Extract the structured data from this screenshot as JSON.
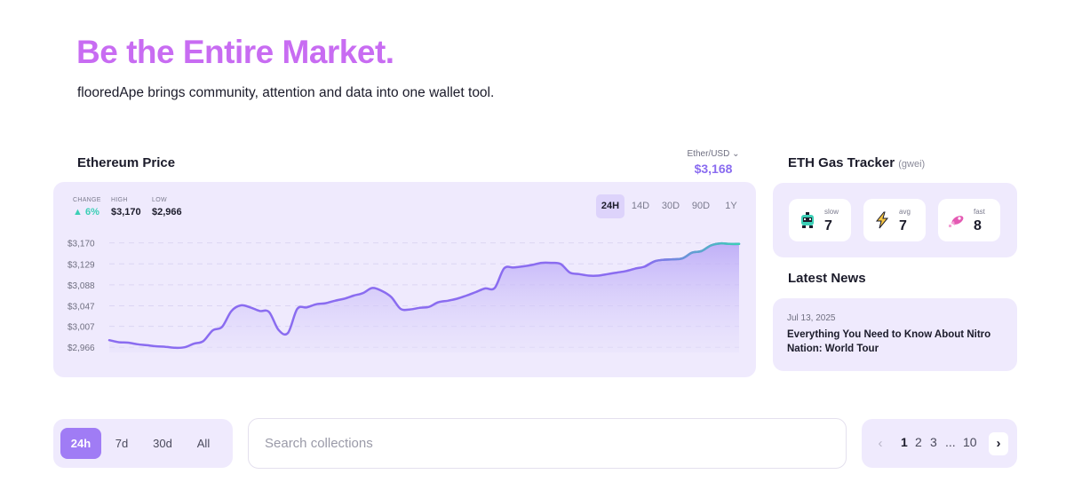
{
  "hero": {
    "title": "Be the Entire Market.",
    "subtitle": "flooredApe brings community, attention and data into one wallet tool."
  },
  "price_panel": {
    "title": "Ethereum Price",
    "currency_selector": "Ether/USD",
    "current_price": "$3,168",
    "stats": {
      "change_label": "CHANGE",
      "change_value": "6%",
      "high_label": "HIGH",
      "high_value": "$3,170",
      "low_label": "LOW",
      "low_value": "$2,966"
    },
    "ranges": [
      "24H",
      "14D",
      "30D",
      "90D",
      "1Y"
    ],
    "active_range": "24H"
  },
  "chart_data": {
    "type": "area",
    "title": "",
    "xlabel": "",
    "ylabel": "",
    "yticks": [
      "$3,170",
      "$3,129",
      "$3,088",
      "$3,047",
      "$3,007",
      "$2,966"
    ],
    "ylim": [
      2956,
      3178
    ],
    "grid": true,
    "series": [
      {
        "values": [
          2980,
          2976,
          2975,
          2972,
          2970,
          2968,
          2967,
          2965,
          2966,
          2973,
          2978,
          2999,
          3006,
          3037,
          3048,
          3044,
          3037,
          3035,
          3000,
          2994,
          3041,
          3044,
          3050,
          3052,
          3057,
          3061,
          3067,
          3072,
          3082,
          3076,
          3064,
          3041,
          3040,
          3043,
          3045,
          3054,
          3057,
          3061,
          3067,
          3074,
          3081,
          3082,
          3120,
          3122,
          3124,
          3127,
          3131,
          3131,
          3129,
          3112,
          3109,
          3106,
          3106,
          3109,
          3112,
          3115,
          3120,
          3124,
          3134,
          3137,
          3138,
          3140,
          3151,
          3154,
          3165,
          3169,
          3168,
          3168
        ]
      }
    ],
    "highlight_from_index": 57,
    "colors": {
      "line": "#8a6cf0",
      "line_recent": "#3ccfb6",
      "fill": "#c9bcf8"
    }
  },
  "gas_panel": {
    "title": "ETH Gas Tracker",
    "unit": "(gwei)",
    "levels": [
      {
        "label": "slow",
        "value": "7",
        "icon": "robot-icon"
      },
      {
        "label": "avg",
        "value": "7",
        "icon": "lightning-icon"
      },
      {
        "label": "fast",
        "value": "8",
        "icon": "rocket-icon"
      }
    ]
  },
  "news_panel": {
    "title": "Latest News",
    "items": [
      {
        "date": "Jul 13, 2025",
        "headline": "Everything You Need to Know About Nitro Nation: World Tour"
      }
    ]
  },
  "filters": {
    "periods": [
      "24h",
      "7d",
      "30d",
      "All"
    ],
    "active_period": "24h",
    "search_placeholder": "Search collections",
    "pagination": {
      "pages": [
        "1",
        "2",
        "3",
        "...",
        "10"
      ],
      "current": "1",
      "prev_icon": "chevron-left-icon",
      "next_icon": "chevron-right-icon"
    }
  }
}
